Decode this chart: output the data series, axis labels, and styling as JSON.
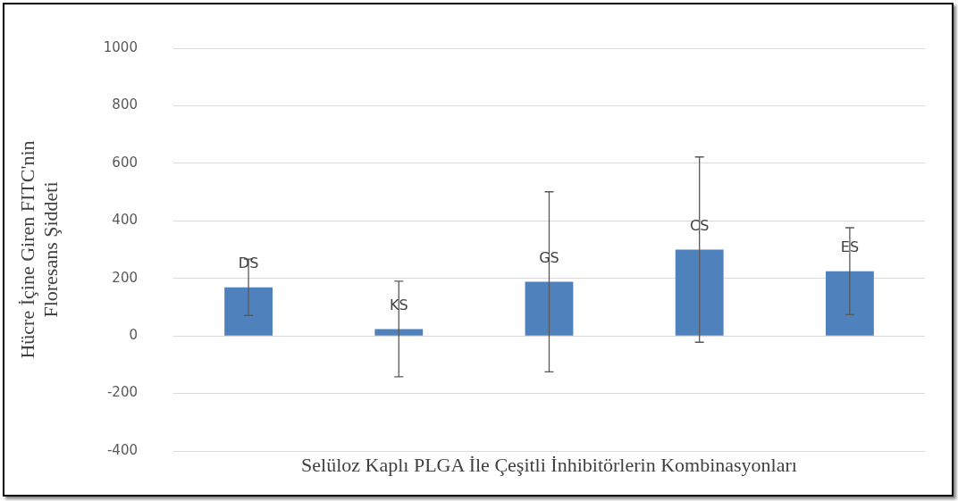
{
  "chart_data": {
    "type": "bar",
    "xlabel": "Selüloz Kaplı PLGA İle Çeşitli İnhibitörlerin Kombinasyonları",
    "ylabel": "Hücre İçine Giren FITC'nin\nFloresans Şiddeti",
    "categories": [
      null,
      null,
      null,
      null,
      null
    ],
    "values": [
      169,
      24,
      188,
      300,
      225
    ],
    "value_labels": [
      "DS",
      "KS",
      "GS",
      "CS",
      "ES"
    ],
    "errors": [
      98,
      166,
      313,
      322,
      151
    ],
    "color": "#4f81bd",
    "ylim": [
      -400,
      1000
    ],
    "yticks": [
      -400,
      -200,
      0,
      200,
      400,
      600,
      800,
      1000
    ],
    "grid": "y",
    "tick_labels": "y",
    "legend": false
  }
}
